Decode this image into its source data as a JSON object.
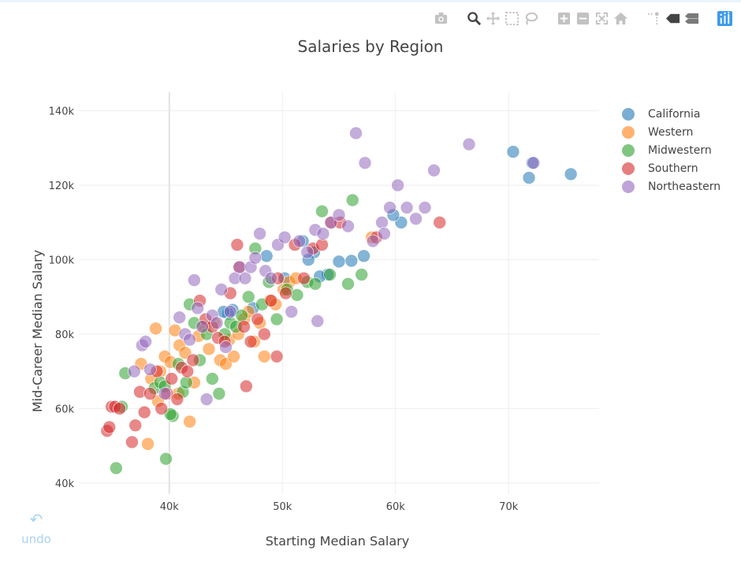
{
  "modebar": {
    "colors": {
      "icon": "#c2c2c2",
      "icon_active": "#444444",
      "brand": "#3d9be9"
    },
    "groups": [
      [
        "camera-icon"
      ],
      [
        "zoom-icon",
        "pan-icon",
        "box-select-icon",
        "lasso-select-icon"
      ],
      [
        "zoom-in-icon",
        "zoom-out-icon",
        "autoscale-icon",
        "reset-axes-icon"
      ],
      [
        "spike-lines-icon",
        "hover-closest-icon",
        "hover-compare-icon"
      ],
      [
        "plotly-logo-icon"
      ]
    ]
  },
  "undo": {
    "icon": "undo-icon",
    "label": "undo"
  },
  "chart_data": {
    "type": "scatter",
    "title": "Salaries by Region",
    "xlabel": "Starting Median Salary",
    "ylabel": "Mid-Career Median Salary",
    "xlim": [
      32000,
      78000
    ],
    "ylim": [
      37000,
      145000
    ],
    "xticks": [
      40000,
      50000,
      60000,
      70000
    ],
    "xtick_labels": [
      "40k",
      "50k",
      "60k",
      "70k"
    ],
    "yticks": [
      40000,
      60000,
      80000,
      100000,
      120000,
      140000
    ],
    "ytick_labels": [
      "40k",
      "60k",
      "80k",
      "100k",
      "120k",
      "140k"
    ],
    "grid": true,
    "legend_position": "right",
    "series": [
      {
        "name": "California",
        "color": "#1f77b4",
        "x": [
          75500,
          72100,
          71800,
          70400,
          60500,
          59800,
          57200,
          56100,
          55000,
          54000,
          53300,
          52800,
          52300,
          51800,
          50200,
          48600,
          47400,
          45600,
          45200,
          44800,
          43100
        ],
        "y": [
          123000,
          126000,
          122000,
          129000,
          110000,
          112000,
          101000,
          99700,
          99500,
          96000,
          95500,
          102000,
          100000,
          105000,
          95000,
          101000,
          87000,
          86500,
          85500,
          86000,
          82000
        ]
      },
      {
        "name": "Western",
        "color": "#ff7f0e",
        "x": [
          37500,
          38100,
          38800,
          39200,
          39600,
          40100,
          40500,
          40900,
          41400,
          41800,
          42200,
          42600,
          43000,
          43500,
          44000,
          44500,
          45000,
          45300,
          45700,
          46100,
          46600,
          47000,
          47500,
          48000,
          48400,
          48900,
          49400,
          50100,
          50600,
          51200,
          57900,
          38400,
          39000,
          40800
        ],
        "y": [
          72000,
          50500,
          81500,
          70000,
          74000,
          72500,
          81000,
          77000,
          75000,
          56500,
          67000,
          79500,
          82000,
          76000,
          83000,
          73000,
          72000,
          78500,
          74000,
          80000,
          84000,
          86000,
          78000,
          83000,
          74000,
          89000,
          88000,
          92000,
          94000,
          95000,
          106000,
          68000,
          62000,
          64000
        ]
      },
      {
        "name": "Midwestern",
        "color": "#2ca02c",
        "x": [
          35300,
          35800,
          36100,
          38700,
          39200,
          39700,
          40300,
          40800,
          41200,
          41500,
          41800,
          42200,
          42700,
          43300,
          43800,
          44400,
          44900,
          45400,
          45900,
          46400,
          47000,
          47600,
          48200,
          48800,
          49500,
          50400,
          51300,
          52200,
          52900,
          53500,
          54200,
          55800,
          56200,
          57000,
          40100,
          39600
        ],
        "y": [
          44000,
          60500,
          69500,
          65500,
          67000,
          46500,
          58000,
          72000,
          64500,
          67000,
          88000,
          83000,
          73000,
          80000,
          68000,
          64000,
          80000,
          83000,
          82000,
          85000,
          90000,
          103000,
          88000,
          94000,
          84000,
          92000,
          90500,
          94000,
          93500,
          113000,
          96000,
          93500,
          116000,
          96000,
          58500,
          66000
        ],
        "note": ""
      },
      {
        "name": "Southern",
        "color": "#d62728",
        "x": [
          34500,
          34700,
          34900,
          35200,
          35600,
          36700,
          37000,
          37400,
          37800,
          38300,
          38900,
          39300,
          39800,
          40200,
          40700,
          41100,
          41600,
          42100,
          42700,
          43200,
          43800,
          44300,
          44900,
          45400,
          46000,
          46600,
          47200,
          47800,
          48400,
          49000,
          49600,
          50300,
          51100,
          51900,
          52700,
          53500,
          54300,
          55100,
          58300,
          63900,
          46200,
          46800,
          49500
        ],
        "y": [
          54000,
          55000,
          60500,
          60500,
          60000,
          51000,
          55500,
          64500,
          59000,
          64000,
          70000,
          60000,
          64000,
          68000,
          62500,
          71000,
          70000,
          73000,
          89000,
          84000,
          82000,
          79000,
          78000,
          91000,
          104000,
          82000,
          78000,
          84000,
          80000,
          89000,
          95000,
          91000,
          104000,
          95000,
          103000,
          104000,
          110000,
          110000,
          106000,
          110000,
          98000,
          66000,
          74000
        ]
      },
      {
        "name": "Northeastern",
        "color": "#9467bd",
        "x": [
          36900,
          37600,
          37900,
          38300,
          39600,
          40900,
          41400,
          41800,
          42200,
          42500,
          42900,
          43300,
          43800,
          44200,
          44600,
          45000,
          45400,
          45800,
          46200,
          46700,
          47200,
          47600,
          48000,
          48500,
          49000,
          49600,
          50200,
          50800,
          51500,
          52200,
          52900,
          53600,
          54300,
          55000,
          55800,
          56500,
          57300,
          58000,
          58800,
          59500,
          60200,
          61000,
          61800,
          62600,
          63400,
          66500,
          72200,
          59000,
          53100
        ],
        "y": [
          70000,
          77000,
          78000,
          70500,
          64000,
          84500,
          80000,
          78500,
          94500,
          87000,
          82000,
          62500,
          85000,
          83000,
          92000,
          76500,
          86000,
          95000,
          98000,
          95000,
          98000,
          100500,
          107000,
          97000,
          95000,
          104000,
          106000,
          86000,
          105000,
          102000,
          108000,
          107000,
          110000,
          112000,
          109000,
          134000,
          126000,
          105000,
          110000,
          114000,
          120000,
          114000,
          111000,
          114000,
          124000,
          131000,
          126000,
          107000,
          83500
        ]
      }
    ]
  }
}
